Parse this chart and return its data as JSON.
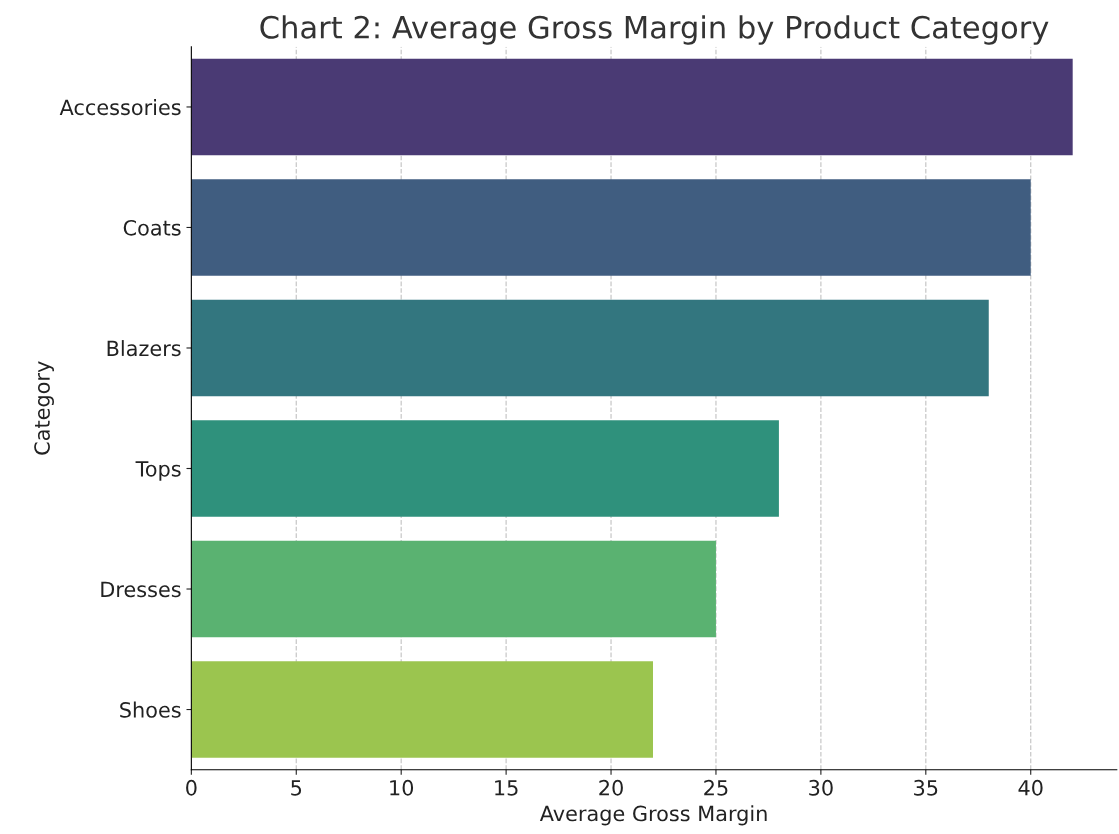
{
  "chart_data": {
    "type": "bar",
    "orientation": "horizontal",
    "title": "Chart 2: Average Gross Margin by Product Category",
    "xlabel": "Average Gross Margin",
    "ylabel": "Category",
    "categories": [
      "Accessories",
      "Coats",
      "Blazers",
      "Tops",
      "Dresses",
      "Shoes"
    ],
    "values": [
      42,
      40,
      38,
      28,
      25,
      22
    ],
    "colors": [
      "#4a3a74",
      "#405d80",
      "#33767f",
      "#2f917c",
      "#5ab271",
      "#9bc54f"
    ],
    "xlim": [
      0,
      44.1
    ],
    "xticks": [
      0,
      5,
      10,
      15,
      20,
      25,
      30,
      35,
      40
    ],
    "grid": "x"
  }
}
